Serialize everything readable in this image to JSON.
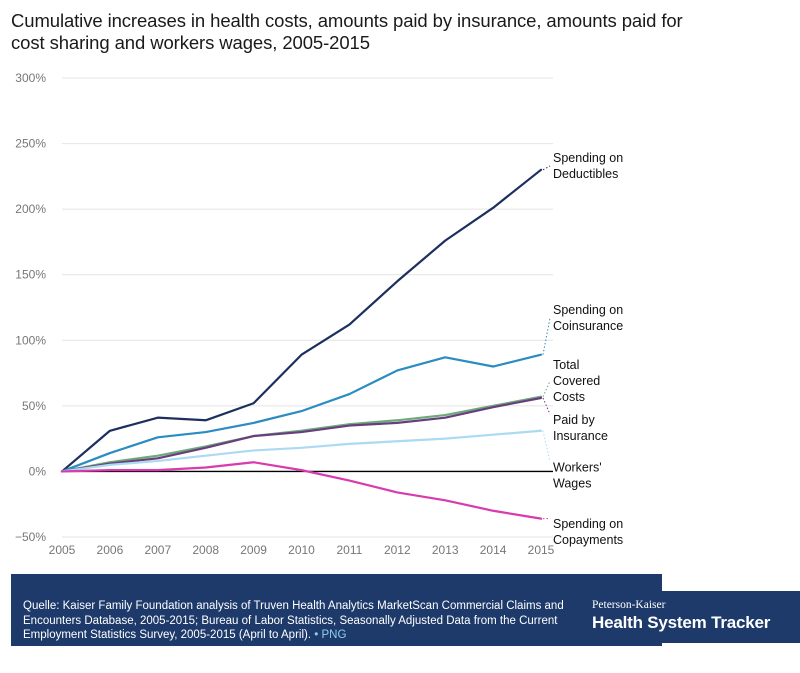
{
  "header": {
    "title": "Cumulative increases in health costs, amounts paid by insurance, amounts paid for cost sharing and workers wages, 2005-2015"
  },
  "chart_data": {
    "type": "line",
    "title": "Cumulative increases in health costs, amounts paid by insurance, amounts paid for cost sharing and workers wages, 2005-2015",
    "xlabel": "",
    "ylabel": "",
    "x": [
      2005,
      2006,
      2007,
      2008,
      2009,
      2010,
      2011,
      2012,
      2013,
      2014,
      2015
    ],
    "x_tick_labels": [
      "2005",
      "2006",
      "2007",
      "2008",
      "2009",
      "2010",
      "2011",
      "2012",
      "2013",
      "2014",
      "2015"
    ],
    "ylim": [
      -50,
      300
    ],
    "y_ticks": [
      -50,
      0,
      50,
      100,
      150,
      200,
      250,
      300
    ],
    "y_tick_labels": [
      "−50%",
      "0%",
      "50%",
      "100%",
      "150%",
      "200%",
      "250%",
      "300%"
    ],
    "grid": true,
    "series": [
      {
        "name": "Spending on Deductibles",
        "color": "#1c2f5e",
        "values": [
          0,
          31,
          41,
          39,
          52,
          89,
          112,
          145,
          176,
          201,
          230
        ]
      },
      {
        "name": "Spending on Coinsurance",
        "color": "#2a8cc0",
        "values": [
          0,
          14,
          26,
          30,
          37,
          46,
          59,
          77,
          87,
          80,
          89
        ]
      },
      {
        "name": "Total Covered Costs",
        "color": "#6aab78",
        "values": [
          0,
          7,
          12,
          19,
          27,
          31,
          36,
          39,
          43,
          50,
          57
        ]
      },
      {
        "name": "Paid by Insurance",
        "color": "#6a3d7e",
        "values": [
          0,
          6,
          10,
          18,
          27,
          30,
          35,
          37,
          41,
          49,
          56
        ]
      },
      {
        "name": "Workers' Wages",
        "color": "#acdaf2",
        "values": [
          0,
          5,
          8,
          12,
          16,
          18,
          21,
          23,
          25,
          28,
          31
        ]
      },
      {
        "name": "Spending on Copayments",
        "color": "#d93aad",
        "values": [
          0,
          1,
          1,
          3,
          7,
          1,
          -7,
          -16,
          -22,
          -30,
          -36
        ]
      }
    ],
    "labels": [
      {
        "series": "Spending on Deductibles",
        "lines": [
          "Spending on",
          "Deductibles"
        ]
      },
      {
        "series": "Spending on Coinsurance",
        "lines": [
          "Spending on",
          "Coinsurance"
        ]
      },
      {
        "series": "Total Covered Costs",
        "lines": [
          "Total",
          "Covered",
          "Costs"
        ]
      },
      {
        "series": "Paid by Insurance",
        "lines": [
          "Paid by",
          "Insurance"
        ]
      },
      {
        "series": "Workers' Wages",
        "lines": [
          "Workers'",
          "Wages"
        ]
      },
      {
        "series": "Spending on Copayments",
        "lines": [
          "Spending on",
          "Copayments"
        ]
      }
    ]
  },
  "footer": {
    "source_text": "Quelle: Kaiser Family Foundation analysis of Truven Health Analytics MarketScan Commercial Claims and Encounters Database, 2005-2015; Bureau of Labor Statistics, Seasonally Adjusted Data from the Current Employment Statistics Survey, 2005-2015 (April to April).",
    "separator": "•",
    "png_label": "PNG",
    "brand_top": "Peterson-Kaiser",
    "brand_main": "Health System Tracker"
  }
}
